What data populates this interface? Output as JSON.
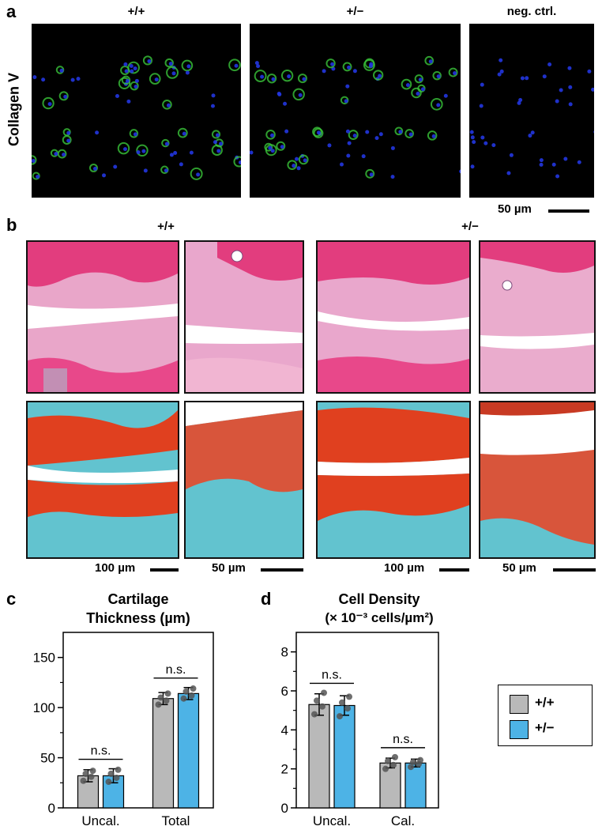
{
  "panel_a": {
    "label": "a",
    "row_label": "Collagen V",
    "groups": [
      "+/+",
      "+/−",
      "neg. ctrl."
    ],
    "scale": "50 µm"
  },
  "panel_b": {
    "label": "b",
    "groups": [
      "+/+",
      "+/−"
    ],
    "scales": [
      "100 µm",
      "50 µm",
      "100 µm",
      "50 µm"
    ]
  },
  "panel_c": {
    "label": "c",
    "title_line1": "Cartilage",
    "title_line2": "Thickness (µm)"
  },
  "panel_d": {
    "label": "d",
    "title_line1": "Cell Density",
    "title_line2": "(× 10⁻³ cells/µm²)"
  },
  "legend": {
    "items": [
      {
        "label": "+/+",
        "color": "#b9b9b9"
      },
      {
        "label": "+/−",
        "color": "#4db3e6"
      }
    ]
  },
  "colors": {
    "wt": "#b9b9b9",
    "het": "#4db3e6",
    "point": "#555555"
  },
  "chart_data": [
    {
      "type": "bar",
      "title": "Cartilage Thickness (µm)",
      "categories": [
        "Uncal.",
        "Total"
      ],
      "series": [
        {
          "name": "+/+",
          "values": [
            32,
            109
          ],
          "err": [
            6,
            6
          ],
          "points": [
            [
              27,
              31,
              34,
              37
            ],
            [
              103,
              107,
              110,
              114
            ]
          ]
        },
        {
          "name": "+/−",
          "values": [
            32,
            114
          ],
          "err": [
            7,
            6
          ],
          "points": [
            [
              26,
              30,
              34,
              38
            ],
            [
              109,
              112,
              116,
              119
            ]
          ]
        }
      ],
      "ylim": [
        0,
        175
      ],
      "yticks": [
        0,
        50,
        100,
        150
      ],
      "annotations": [
        "n.s.",
        "n.s."
      ]
    },
    {
      "type": "bar",
      "title": "Cell Density (× 10⁻³ cells/µm²)",
      "categories": [
        "Uncal.",
        "Cal."
      ],
      "series": [
        {
          "name": "+/+",
          "values": [
            5.3,
            2.3
          ],
          "err": [
            0.55,
            0.25
          ],
          "points": [
            [
              4.8,
              5.2,
              5.5,
              5.9
            ],
            [
              2.0,
              2.2,
              2.4,
              2.6
            ]
          ]
        },
        {
          "name": "+/−",
          "values": [
            5.25,
            2.3
          ],
          "err": [
            0.5,
            0.2
          ],
          "points": [
            [
              4.7,
              5.1,
              5.4,
              5.7
            ],
            [
              2.1,
              2.25,
              2.35,
              2.45
            ]
          ]
        }
      ],
      "ylim": [
        0,
        9
      ],
      "yticks": [
        0,
        2,
        4,
        6,
        8
      ],
      "annotations": [
        "n.s.",
        "n.s."
      ]
    }
  ]
}
